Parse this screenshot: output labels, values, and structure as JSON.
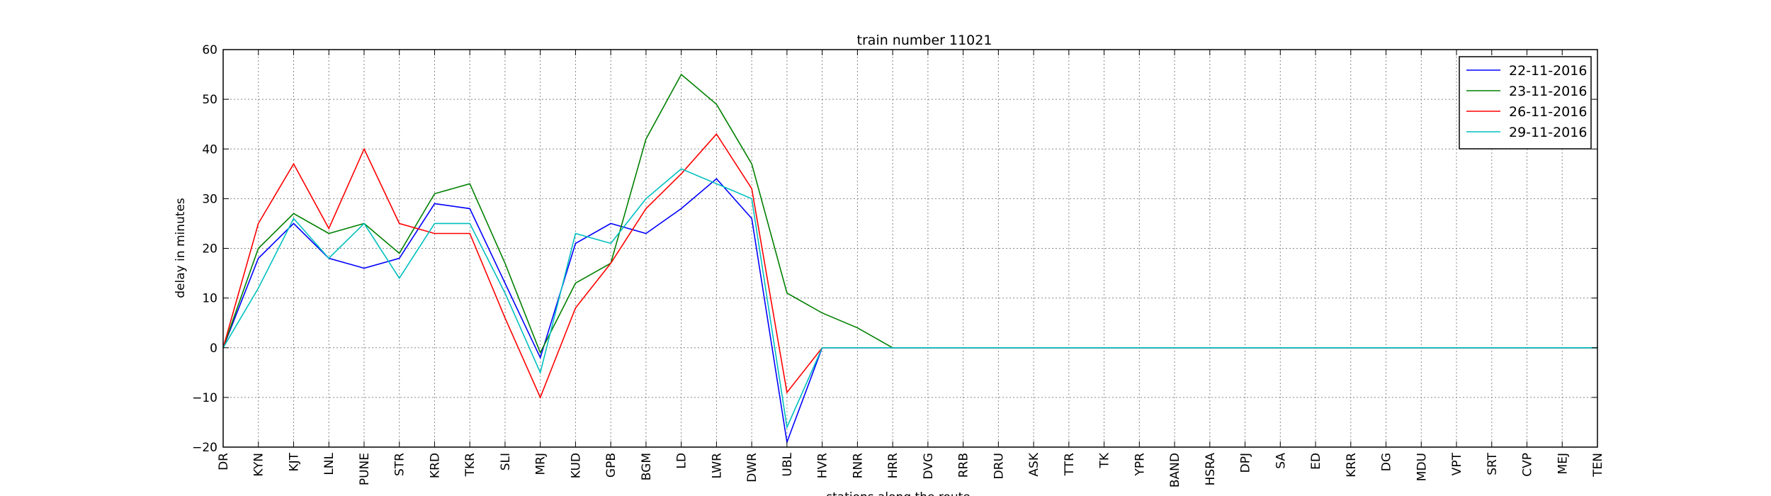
{
  "chart_data": {
    "type": "line",
    "title": "train number 11021",
    "xlabel": "stations along the route",
    "ylabel": "delay in minutes",
    "ylim": [
      -20,
      60
    ],
    "yticks": [
      -20,
      -10,
      0,
      10,
      20,
      30,
      40,
      50,
      60
    ],
    "grid": true,
    "legend_position": "top-right",
    "categories": [
      "DR",
      "KYN",
      "KJT",
      "LNL",
      "PUNE",
      "STR",
      "KRD",
      "TKR",
      "SLI",
      "MRJ",
      "KUD",
      "GPB",
      "BGM",
      "LD",
      "LWR",
      "DWR",
      "UBL",
      "HVR",
      "RNR",
      "HRR",
      "DVG",
      "RRB",
      "DRU",
      "ASK",
      "TTR",
      "TK",
      "YPR",
      "BAND",
      "HSRA",
      "DPJ",
      "SA",
      "ED",
      "KRR",
      "DG",
      "MDU",
      "VPT",
      "SRT",
      "CVP",
      "MEJ",
      "TEN"
    ],
    "series": [
      {
        "name": "22-11-2016",
        "color": "#0000ff",
        "values": [
          0,
          18,
          25,
          18,
          16,
          18,
          29,
          28,
          13,
          -2,
          21,
          25,
          23,
          28,
          34,
          26,
          -19,
          0,
          0,
          0,
          0,
          0,
          0,
          0,
          0,
          0,
          0,
          0,
          0,
          0,
          0,
          0,
          0,
          0,
          0,
          0,
          0,
          0,
          0,
          0
        ]
      },
      {
        "name": "23-11-2016",
        "color": "#008000",
        "values": [
          0,
          20,
          27,
          23,
          25,
          19,
          31,
          33,
          17,
          -1,
          13,
          17,
          42,
          55,
          49,
          37,
          11,
          7,
          4,
          0,
          0,
          0,
          0,
          0,
          0,
          0,
          0,
          0,
          0,
          0,
          0,
          0,
          0,
          0,
          0,
          0,
          0,
          0,
          0,
          0
        ]
      },
      {
        "name": "26-11-2016",
        "color": "#ff0000",
        "values": [
          0,
          25,
          37,
          24,
          40,
          25,
          23,
          23,
          6,
          -10,
          8,
          17,
          28,
          35,
          43,
          32,
          -9,
          0,
          0,
          0,
          0,
          0,
          0,
          0,
          0,
          0,
          0,
          0,
          0,
          0,
          0,
          0,
          0,
          0,
          0,
          0,
          0,
          0,
          0,
          0
        ]
      },
      {
        "name": "29-11-2016",
        "color": "#00bfbf",
        "values": [
          0,
          12,
          26,
          18,
          25,
          14,
          25,
          25,
          11,
          -5,
          23,
          21,
          30,
          36,
          33,
          30,
          -16,
          0,
          0,
          0,
          0,
          0,
          0,
          0,
          0,
          0,
          0,
          0,
          0,
          0,
          0,
          0,
          0,
          0,
          0,
          0,
          0,
          0,
          0,
          0
        ]
      }
    ]
  }
}
